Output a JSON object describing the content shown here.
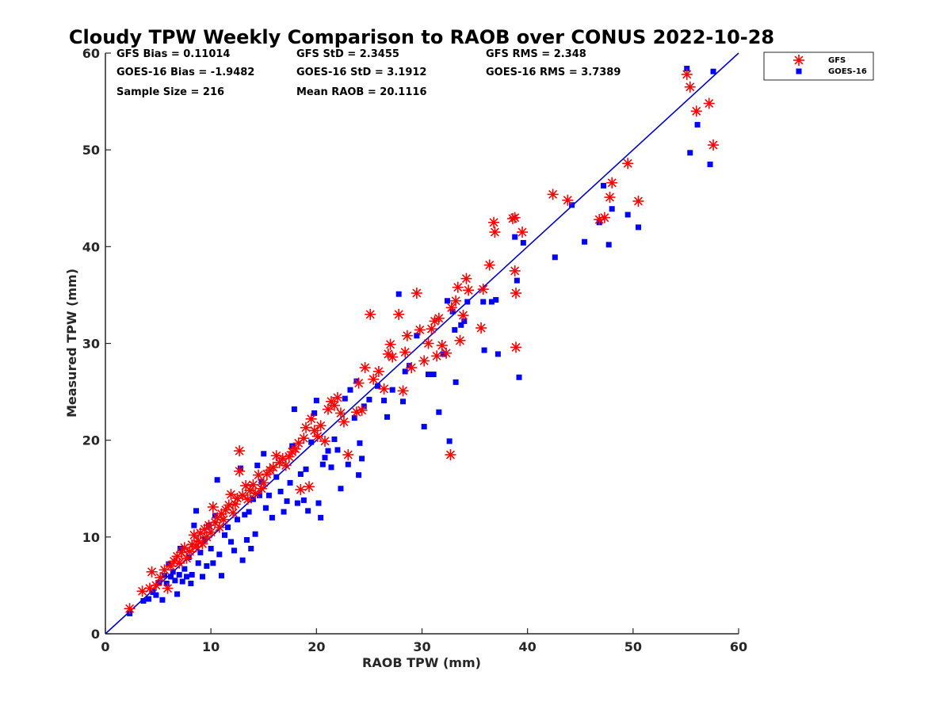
{
  "chart_data": {
    "type": "scatter",
    "title": "Cloudy TPW Weekly Comparison to RAOB over CONUS 2022-10-28",
    "xlabel": "RAOB TPW (mm)",
    "ylabel": "Measured TPW (mm)",
    "xlim": [
      0,
      60
    ],
    "ylim": [
      0,
      60
    ],
    "xticks": [
      0,
      10,
      20,
      30,
      40,
      50,
      60
    ],
    "yticks": [
      0,
      10,
      20,
      30,
      40,
      50,
      60
    ],
    "grid": false,
    "legend_position": "outside top-right",
    "reference_line": {
      "from": [
        0,
        0
      ],
      "to": [
        60,
        60
      ],
      "color": "#0000cc"
    },
    "stats": [
      [
        "GFS Bias = 0.11014",
        "GFS StD = 2.3455",
        "GFS RMS = 2.348"
      ],
      [
        "GOES-16 Bias = -1.9482",
        "GOES-16 StD = 3.1912",
        "GOES-16 RMS = 3.7389"
      ],
      [
        "Sample Size = 216",
        "Mean RAOB = 20.1116",
        ""
      ]
    ],
    "series": [
      {
        "name": "GFS",
        "marker": "asterisk",
        "color": "#ff0000",
        "points": [
          [
            2.3,
            2.6
          ],
          [
            3.5,
            4.4
          ],
          [
            4.2,
            4.7
          ],
          [
            4.4,
            6.4
          ],
          [
            4.8,
            5.0
          ],
          [
            5.2,
            5.8
          ],
          [
            5.6,
            6.6
          ],
          [
            5.9,
            4.7
          ],
          [
            6.2,
            7.0
          ],
          [
            6.5,
            7.5
          ],
          [
            6.8,
            8.0
          ],
          [
            7.0,
            7.3
          ],
          [
            7.2,
            8.4
          ],
          [
            7.5,
            8.9
          ],
          [
            7.7,
            7.8
          ],
          [
            8.0,
            8.5
          ],
          [
            8.2,
            9.2
          ],
          [
            8.4,
            10.2
          ],
          [
            8.6,
            9.0
          ],
          [
            8.8,
            9.6
          ],
          [
            9.0,
            10.4
          ],
          [
            9.2,
            9.3
          ],
          [
            9.4,
            10.8
          ],
          [
            9.6,
            10.0
          ],
          [
            9.8,
            11.2
          ],
          [
            10.0,
            10.5
          ],
          [
            10.2,
            13.1
          ],
          [
            10.4,
            11.5
          ],
          [
            10.6,
            12.0
          ],
          [
            10.8,
            11.0
          ],
          [
            11.0,
            12.4
          ],
          [
            11.2,
            11.8
          ],
          [
            11.4,
            12.8
          ],
          [
            11.7,
            13.3
          ],
          [
            11.9,
            14.4
          ],
          [
            12.1,
            12.5
          ],
          [
            12.3,
            13.4
          ],
          [
            12.5,
            14.0
          ],
          [
            12.7,
            18.9
          ],
          [
            12.7,
            16.8
          ],
          [
            13.0,
            14.3
          ],
          [
            13.3,
            15.3
          ],
          [
            13.5,
            13.9
          ],
          [
            13.7,
            14.8
          ],
          [
            14.0,
            15.4
          ],
          [
            14.2,
            14.5
          ],
          [
            14.5,
            16.4
          ],
          [
            14.8,
            15.0
          ],
          [
            15.0,
            15.6
          ],
          [
            15.3,
            16.5
          ],
          [
            15.6,
            16.9
          ],
          [
            15.9,
            17.2
          ],
          [
            16.2,
            18.4
          ],
          [
            16.5,
            17.7
          ],
          [
            16.8,
            18.1
          ],
          [
            17.1,
            17.4
          ],
          [
            17.4,
            18.3
          ],
          [
            17.7,
            18.8
          ],
          [
            18.0,
            19.1
          ],
          [
            18.3,
            19.7
          ],
          [
            18.5,
            14.9
          ],
          [
            18.8,
            20.2
          ],
          [
            19.0,
            21.3
          ],
          [
            19.3,
            15.2
          ],
          [
            19.5,
            22.2
          ],
          [
            19.8,
            21.0
          ],
          [
            20.1,
            20.4
          ],
          [
            20.4,
            21.5
          ],
          [
            20.8,
            19.9
          ],
          [
            21.1,
            23.2
          ],
          [
            21.4,
            24.0
          ],
          [
            21.7,
            23.6
          ],
          [
            22.0,
            24.4
          ],
          [
            22.3,
            22.8
          ],
          [
            22.6,
            21.9
          ],
          [
            23.0,
            18.5
          ],
          [
            23.8,
            22.9
          ],
          [
            24.0,
            25.9
          ],
          [
            24.3,
            23.1
          ],
          [
            24.6,
            27.5
          ],
          [
            25.1,
            33.0
          ],
          [
            25.4,
            26.3
          ],
          [
            25.9,
            27.1
          ],
          [
            26.4,
            25.3
          ],
          [
            26.8,
            28.9
          ],
          [
            27.0,
            29.9
          ],
          [
            27.2,
            28.6
          ],
          [
            27.8,
            33.0
          ],
          [
            28.2,
            25.1
          ],
          [
            28.4,
            29.1
          ],
          [
            28.6,
            30.8
          ],
          [
            29.0,
            27.5
          ],
          [
            29.5,
            35.2
          ],
          [
            29.8,
            31.4
          ],
          [
            30.2,
            28.2
          ],
          [
            30.6,
            30.0
          ],
          [
            30.9,
            31.5
          ],
          [
            31.2,
            32.3
          ],
          [
            31.4,
            28.7
          ],
          [
            31.6,
            32.6
          ],
          [
            31.9,
            29.8
          ],
          [
            32.3,
            29.0
          ],
          [
            32.7,
            18.5
          ],
          [
            32.8,
            33.7
          ],
          [
            33.2,
            34.4
          ],
          [
            33.4,
            35.8
          ],
          [
            33.6,
            30.3
          ],
          [
            33.9,
            32.9
          ],
          [
            34.2,
            36.7
          ],
          [
            34.4,
            35.5
          ],
          [
            35.6,
            31.6
          ],
          [
            35.8,
            35.6
          ],
          [
            36.4,
            38.1
          ],
          [
            36.8,
            42.5
          ],
          [
            36.9,
            41.5
          ],
          [
            38.6,
            42.9
          ],
          [
            38.8,
            43.0
          ],
          [
            38.8,
            37.5
          ],
          [
            38.9,
            35.2
          ],
          [
            38.9,
            29.6
          ],
          [
            39.5,
            41.5
          ],
          [
            42.4,
            45.4
          ],
          [
            43.8,
            44.8
          ],
          [
            46.8,
            42.8
          ],
          [
            47.3,
            43.0
          ],
          [
            47.8,
            45.1
          ],
          [
            48.0,
            46.6
          ],
          [
            49.5,
            48.6
          ],
          [
            50.5,
            44.7
          ],
          [
            55.1,
            57.8
          ],
          [
            55.4,
            56.5
          ],
          [
            56.0,
            54.0
          ],
          [
            57.2,
            54.8
          ],
          [
            57.6,
            50.5
          ]
        ]
      },
      {
        "name": "GOES-16",
        "marker": "square",
        "color": "#0000ff",
        "points": [
          [
            2.3,
            2.1
          ],
          [
            3.6,
            3.4
          ],
          [
            4.1,
            3.6
          ],
          [
            4.5,
            4.3
          ],
          [
            4.8,
            4.0
          ],
          [
            5.1,
            5.3
          ],
          [
            5.4,
            3.5
          ],
          [
            5.6,
            6.0
          ],
          [
            5.8,
            5.2
          ],
          [
            6.0,
            7.2
          ],
          [
            6.2,
            5.9
          ],
          [
            6.4,
            6.4
          ],
          [
            6.6,
            5.5
          ],
          [
            6.8,
            4.1
          ],
          [
            7.0,
            6.1
          ],
          [
            7.1,
            8.8
          ],
          [
            7.3,
            5.4
          ],
          [
            7.5,
            6.7
          ],
          [
            7.7,
            5.9
          ],
          [
            7.9,
            7.9
          ],
          [
            8.1,
            5.2
          ],
          [
            8.2,
            6.1
          ],
          [
            8.4,
            11.2
          ],
          [
            8.6,
            12.7
          ],
          [
            8.8,
            7.3
          ],
          [
            9.0,
            8.4
          ],
          [
            9.2,
            5.9
          ],
          [
            9.4,
            9.7
          ],
          [
            9.6,
            7.0
          ],
          [
            9.8,
            11.2
          ],
          [
            10.0,
            8.8
          ],
          [
            10.2,
            7.3
          ],
          [
            10.4,
            12.2
          ],
          [
            10.6,
            15.9
          ],
          [
            10.8,
            8.2
          ],
          [
            11.0,
            6.0
          ],
          [
            11.3,
            10.2
          ],
          [
            11.6,
            11.0
          ],
          [
            11.9,
            9.5
          ],
          [
            12.2,
            8.6
          ],
          [
            12.5,
            11.8
          ],
          [
            12.8,
            17.1
          ],
          [
            13.0,
            7.6
          ],
          [
            13.2,
            12.3
          ],
          [
            13.4,
            9.7
          ],
          [
            13.6,
            12.6
          ],
          [
            13.8,
            8.8
          ],
          [
            14.0,
            13.9
          ],
          [
            14.2,
            10.3
          ],
          [
            14.4,
            17.4
          ],
          [
            14.6,
            14.3
          ],
          [
            14.8,
            15.7
          ],
          [
            15.0,
            18.6
          ],
          [
            15.2,
            13.0
          ],
          [
            15.5,
            14.3
          ],
          [
            15.8,
            12.0
          ],
          [
            16.2,
            16.2
          ],
          [
            16.6,
            14.7
          ],
          [
            16.9,
            12.6
          ],
          [
            17.2,
            13.7
          ],
          [
            17.5,
            15.6
          ],
          [
            17.7,
            19.4
          ],
          [
            17.9,
            23.2
          ],
          [
            18.2,
            13.5
          ],
          [
            18.5,
            16.5
          ],
          [
            18.8,
            13.8
          ],
          [
            19.0,
            17.0
          ],
          [
            19.2,
            12.7
          ],
          [
            19.5,
            19.8
          ],
          [
            19.8,
            22.8
          ],
          [
            20.0,
            24.1
          ],
          [
            20.2,
            13.5
          ],
          [
            20.4,
            12.0
          ],
          [
            20.6,
            17.5
          ],
          [
            20.8,
            18.2
          ],
          [
            21.1,
            18.9
          ],
          [
            21.4,
            17.2
          ],
          [
            21.7,
            20.1
          ],
          [
            22.0,
            19.0
          ],
          [
            22.3,
            15.0
          ],
          [
            22.7,
            24.3
          ],
          [
            23.0,
            17.5
          ],
          [
            23.2,
            25.2
          ],
          [
            23.6,
            22.3
          ],
          [
            23.8,
            26.1
          ],
          [
            24.0,
            16.4
          ],
          [
            24.1,
            19.7
          ],
          [
            24.3,
            18.1
          ],
          [
            24.5,
            23.5
          ],
          [
            25.0,
            24.2
          ],
          [
            25.8,
            25.6
          ],
          [
            26.4,
            24.1
          ],
          [
            26.7,
            22.4
          ],
          [
            27.2,
            25.2
          ],
          [
            27.8,
            35.1
          ],
          [
            28.2,
            24.0
          ],
          [
            28.4,
            27.1
          ],
          [
            28.8,
            27.7
          ],
          [
            29.5,
            30.8
          ],
          [
            30.2,
            21.4
          ],
          [
            30.6,
            26.8
          ],
          [
            31.1,
            26.8
          ],
          [
            31.6,
            22.9
          ],
          [
            32.0,
            28.9
          ],
          [
            32.4,
            34.4
          ],
          [
            32.6,
            19.9
          ],
          [
            32.9,
            33.3
          ],
          [
            33.1,
            31.4
          ],
          [
            33.2,
            26.0
          ],
          [
            33.7,
            31.9
          ],
          [
            34.0,
            32.3
          ],
          [
            34.3,
            34.3
          ],
          [
            35.8,
            34.3
          ],
          [
            35.9,
            29.3
          ],
          [
            36.6,
            34.3
          ],
          [
            37.0,
            34.5
          ],
          [
            37.2,
            28.9
          ],
          [
            38.8,
            41.0
          ],
          [
            39.0,
            36.5
          ],
          [
            39.2,
            26.5
          ],
          [
            39.6,
            40.4
          ],
          [
            42.6,
            38.9
          ],
          [
            44.2,
            44.3
          ],
          [
            45.4,
            40.5
          ],
          [
            46.8,
            42.5
          ],
          [
            47.2,
            46.3
          ],
          [
            47.7,
            40.2
          ],
          [
            48.0,
            43.9
          ],
          [
            49.5,
            43.3
          ],
          [
            50.5,
            42.0
          ],
          [
            55.1,
            58.4
          ],
          [
            55.4,
            49.7
          ],
          [
            56.1,
            52.6
          ],
          [
            57.3,
            48.5
          ],
          [
            57.6,
            58.1
          ]
        ]
      }
    ]
  }
}
